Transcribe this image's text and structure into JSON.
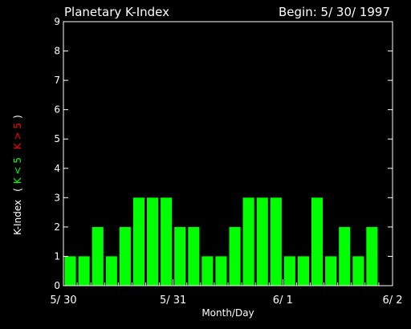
{
  "header": {
    "title": "Planetary K-Index",
    "begin": "Begin: 5/ 30/ 1997"
  },
  "colors": {
    "background": "#000000",
    "axis": "#ffffff",
    "bar": "#00ff00",
    "quiet": "#00ff00",
    "storm": "#ff0000"
  },
  "chart_data": {
    "type": "bar",
    "title": "Planetary K-Index",
    "xlabel": "Month/Day",
    "ylabel": "K-Index",
    "ylabel_quiet": "K < 5",
    "ylabel_storm": "K > 5",
    "ylim": [
      0,
      9
    ],
    "yticks": [
      "0",
      "1",
      "2",
      "3",
      "4",
      "5",
      "6",
      "7",
      "8",
      "9"
    ],
    "xticks": [
      "5/ 30",
      "5/ 31",
      "6/ 1",
      "6/ 2"
    ],
    "days": 3,
    "bars_per_day": 8,
    "values": [
      1,
      1,
      2,
      1,
      2,
      3,
      3,
      3,
      2,
      2,
      1,
      1,
      2,
      3,
      3,
      3,
      1,
      1,
      3,
      1,
      2,
      1,
      2
    ]
  }
}
